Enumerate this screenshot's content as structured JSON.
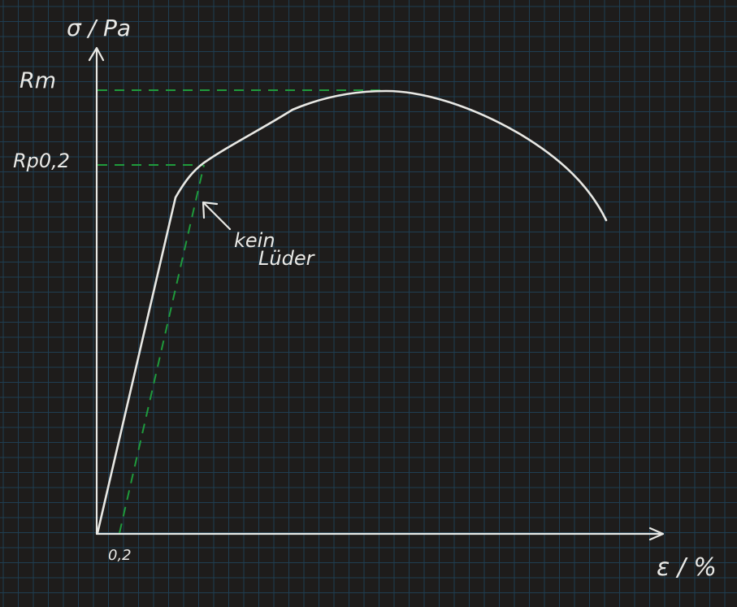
{
  "colors": {
    "background": "#1e1c1b",
    "grid": "#1f3e52",
    "ink": "#e8e8e4",
    "guide": "#1f9a3c"
  },
  "axes": {
    "y_label": "σ / Pa",
    "x_label": "ε / %"
  },
  "labels": {
    "rm": "Rm",
    "rp02": "Rp0,2",
    "offset": "0,2",
    "annotation_line1": "kein",
    "annotation_line2": "Lüder"
  }
}
